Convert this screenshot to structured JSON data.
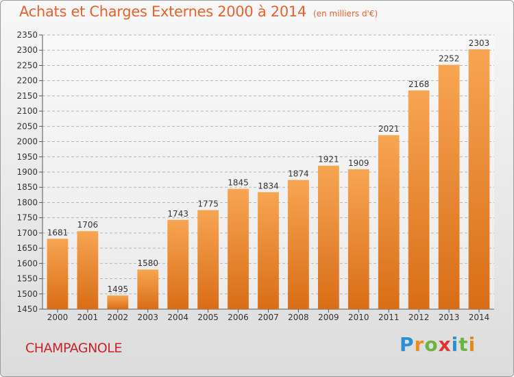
{
  "title": "Achats et Charges Externes 2000 à 2014",
  "unit": "(en milliers d'€)",
  "place": "CHAMPAGNOLE",
  "logo": {
    "letters": [
      "P",
      "r",
      "o",
      "x",
      "i",
      "t",
      "i"
    ],
    "colors": [
      "#2c8fd6",
      "#f08a1c",
      "#6db33f",
      "#e0362d",
      "#2c8fd6",
      "#6db33f",
      "#e08a1c"
    ]
  },
  "colors": {
    "bar_light": "#f7a552",
    "bar_dark": "#d96d16",
    "title": "#e6622a",
    "place": "#c8222a"
  },
  "chart_data": {
    "type": "bar",
    "title": "Achats et Charges Externes 2000 à 2014",
    "categories": [
      "2000",
      "2001",
      "2002",
      "2003",
      "2004",
      "2005",
      "2006",
      "2007",
      "2008",
      "2009",
      "2010",
      "2011",
      "2012",
      "2013",
      "2014"
    ],
    "values": [
      1681,
      1706,
      1495,
      1580,
      1743,
      1775,
      1845,
      1834,
      1874,
      1921,
      1909,
      2021,
      2168,
      2252,
      2303
    ],
    "ylim": [
      1450,
      2350
    ],
    "yticks": [
      1450,
      1500,
      1550,
      1600,
      1650,
      1700,
      1750,
      1800,
      1850,
      1900,
      1950,
      2000,
      2050,
      2100,
      2150,
      2200,
      2250,
      2300,
      2350
    ],
    "grid": true,
    "xlabel": "",
    "ylabel": ""
  }
}
